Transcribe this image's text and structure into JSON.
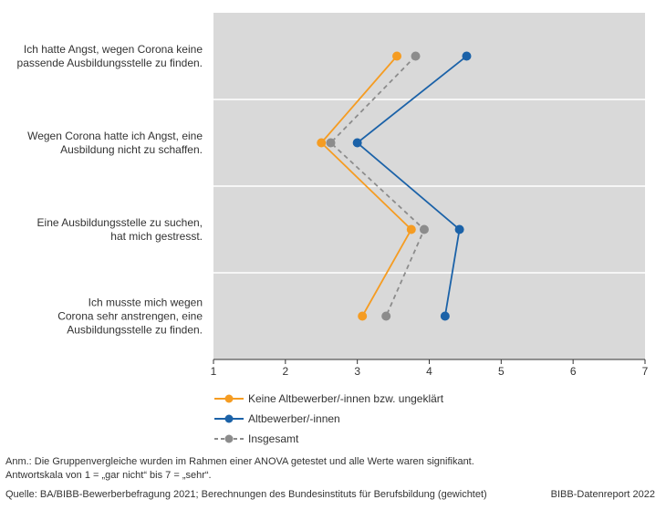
{
  "chart_data": {
    "type": "line",
    "orientation": "horizontal",
    "categories": [
      [
        "Ich hatte Angst, wegen Corona keine",
        "passende Ausbildungsstelle zu finden."
      ],
      [
        "Wegen Corona hatte ich Angst, eine",
        "Ausbildung nicht zu schaffen."
      ],
      [
        "Eine Ausbildungsstelle zu suchen,",
        "hat mich gestresst."
      ],
      [
        "Ich musste mich wegen",
        "Corona sehr anstrengen, eine",
        "Ausbildungsstelle zu finden."
      ]
    ],
    "series": [
      {
        "name": "Keine Altbewerber/-innen bzw. ungeklärt",
        "color": "#f59c22",
        "dashed": false,
        "values": [
          3.55,
          2.5,
          3.75,
          3.07
        ]
      },
      {
        "name": "Altbewerber/-innen",
        "color": "#1b62a8",
        "dashed": false,
        "values": [
          4.52,
          3.0,
          4.42,
          4.22
        ]
      },
      {
        "name": "Insgesamt",
        "color": "#8c8c8c",
        "dashed": true,
        "values": [
          3.81,
          2.63,
          3.93,
          3.4
        ]
      }
    ],
    "xlim": [
      1,
      7
    ],
    "xticks": [
      "1",
      "2",
      "3",
      "4",
      "5",
      "6",
      "7"
    ],
    "plot_background": "#d9d9d9",
    "gridlines": "horizontal separators between categories",
    "legend_position": "bottom"
  },
  "footer": {
    "note1": "Anm.: Die Gruppenvergleiche wurden im Rahmen einer ANOVA getestet und alle Werte waren signifikant.",
    "note2": "Antwortskala von 1 = „gar nicht“ bis 7 = „sehr“.",
    "source": "Quelle: BA/BIBB-Bewerberbefragung 2021; Berechnungen des Bundesinstituts für Berufsbildung (gewichtet)",
    "publisher": "BIBB-Datenreport 2022"
  }
}
